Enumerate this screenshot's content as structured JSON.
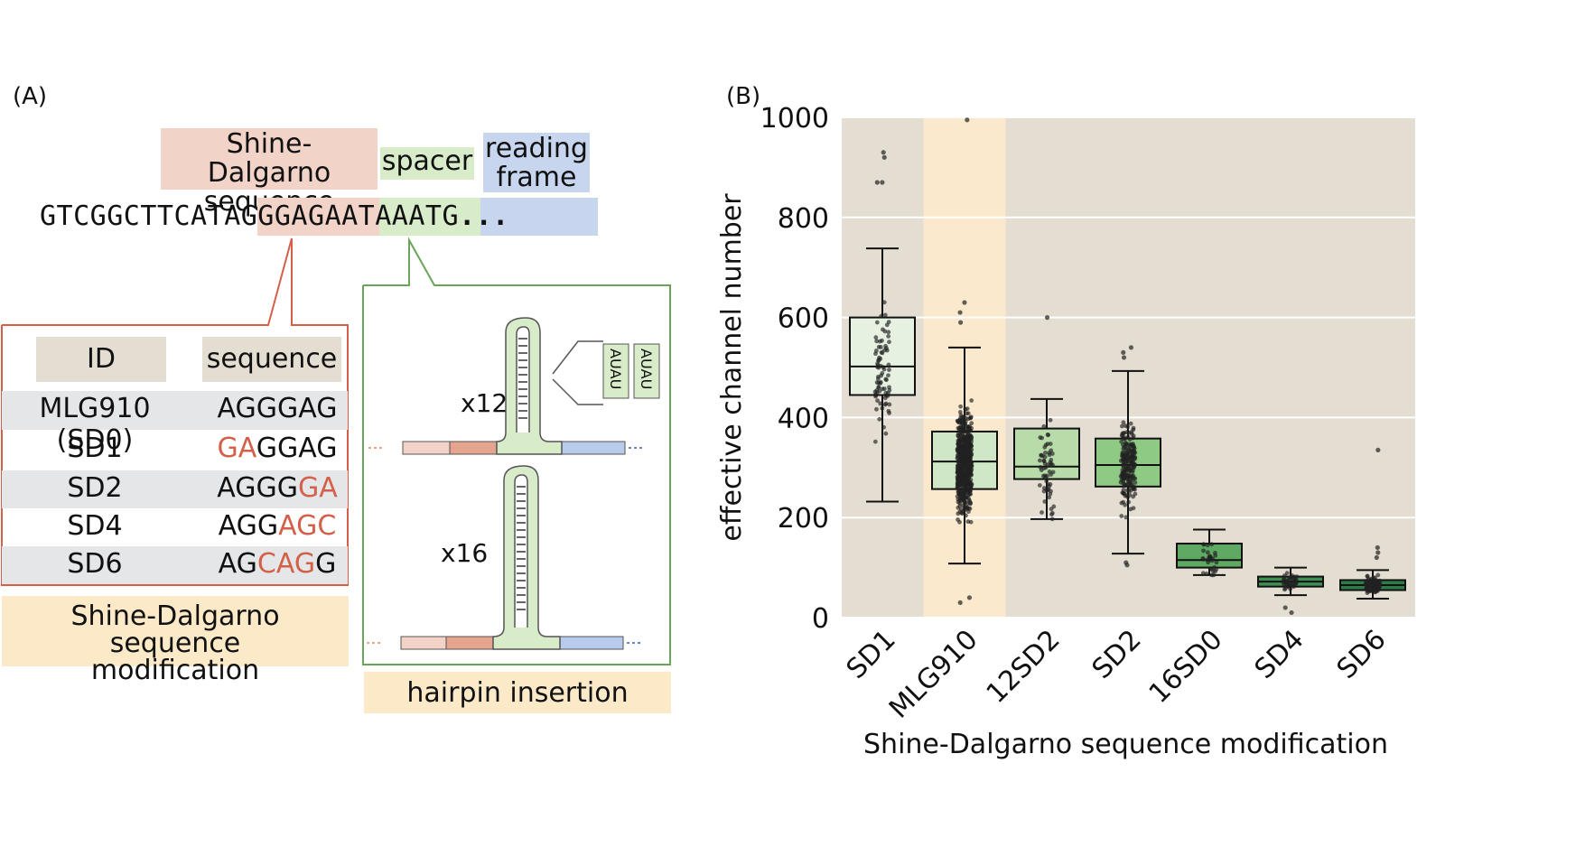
{
  "panel_a": {
    "label": "(A)",
    "headers": {
      "sd": "Shine-Dalgarno sequence",
      "spacer": "spacer",
      "rf": "reading frame"
    },
    "sequence": {
      "prefix": "GTCGGCTTCAT",
      "sd": "AGGGAG",
      "spacer": "AATAA",
      "start": "ATG",
      "tail": "..."
    },
    "table": {
      "col_id": "ID",
      "col_seq": "sequence",
      "rows": [
        {
          "id": "MLG910 (SD0)",
          "seq": [
            {
              "t": "AGGGAG",
              "mut": false
            }
          ]
        },
        {
          "id": "SD1",
          "seq": [
            {
              "t": "GA",
              "mut": true
            },
            {
              "t": "GGAG",
              "mut": false
            }
          ]
        },
        {
          "id": "SD2",
          "seq": [
            {
              "t": "AGGG",
              "mut": false
            },
            {
              "t": "GA",
              "mut": true
            }
          ]
        },
        {
          "id": "SD4",
          "seq": [
            {
              "t": "AGG",
              "mut": false
            },
            {
              "t": "AGC",
              "mut": true
            }
          ]
        },
        {
          "id": "SD6",
          "seq": [
            {
              "t": "AG",
              "mut": false
            },
            {
              "t": "CAG",
              "mut": true
            },
            {
              "t": "G",
              "mut": false
            }
          ]
        }
      ]
    },
    "sd_mod_label": "Shine-Dalgarno sequence modification",
    "hairpin": {
      "x12": "x12",
      "x16": "x16",
      "auau": "AUAU",
      "label": "hairpin insertion"
    },
    "colors": {
      "sd": "#f2d3c8",
      "spacer": "#d9ecc9",
      "rf": "#c7d6ee",
      "label_bg": "#fbe9c8",
      "red": "#d4604a",
      "green": "#6aa35a"
    }
  },
  "panel_b": {
    "label": "(B)",
    "highlight_color": "#fae9cd",
    "bg_color": "#e4ddd1"
  },
  "chart_data": {
    "type": "box",
    "xlabel": "Shine-Dalgarno sequence modification",
    "ylabel": "effective channel number",
    "ylim": [
      0,
      1000
    ],
    "yticks": [
      0,
      200,
      400,
      600,
      800,
      1000
    ],
    "highlight_category": "MLG910",
    "categories": [
      "SD1",
      "MLG910",
      "12SD2",
      "SD2",
      "16SD0",
      "SD4",
      "SD6"
    ],
    "boxes": [
      {
        "name": "SD1",
        "whisker_low": 232,
        "q1": 445,
        "median": 502,
        "q3": 600,
        "whisker_high": 738,
        "outliers": [
          930,
          920,
          870,
          870
        ],
        "color": "#e6f1e2",
        "n": 80
      },
      {
        "name": "MLG910",
        "whisker_low": 108,
        "q1": 257,
        "median": 312,
        "q3": 372,
        "whisker_high": 540,
        "outliers": [
          995,
          630,
          610,
          590,
          40,
          30
        ],
        "color": "#cfe7c6",
        "n": 600
      },
      {
        "name": "12SD2",
        "whisker_low": 197,
        "q1": 277,
        "median": 302,
        "q3": 378,
        "whisker_high": 437,
        "outliers": [
          600
        ],
        "color": "#b7dcaa",
        "n": 60
      },
      {
        "name": "SD2",
        "whisker_low": 128,
        "q1": 262,
        "median": 305,
        "q3": 358,
        "whisker_high": 493,
        "outliers": [
          540,
          530,
          520,
          110,
          105
        ],
        "color": "#8fca84",
        "n": 200
      },
      {
        "name": "16SD0",
        "whisker_low": 85,
        "q1": 100,
        "median": 115,
        "q3": 148,
        "whisker_high": 176,
        "outliers": [],
        "color": "#5eaa62",
        "n": 30
      },
      {
        "name": "SD4",
        "whisker_low": 45,
        "q1": 62,
        "median": 72,
        "q3": 82,
        "whisker_high": 100,
        "outliers": [
          10,
          20
        ],
        "color": "#3d9052",
        "n": 40
      },
      {
        "name": "SD6",
        "whisker_low": 38,
        "q1": 55,
        "median": 65,
        "q3": 75,
        "whisker_high": 95,
        "outliers": [
          335,
          140,
          130,
          120
        ],
        "color": "#2c7a47",
        "n": 120
      }
    ]
  }
}
